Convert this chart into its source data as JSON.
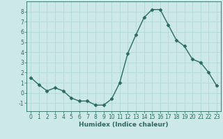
{
  "x": [
    0,
    1,
    2,
    3,
    4,
    5,
    6,
    7,
    8,
    9,
    10,
    11,
    12,
    13,
    14,
    15,
    16,
    17,
    18,
    19,
    20,
    21,
    22,
    23
  ],
  "y": [
    1.5,
    0.8,
    0.2,
    0.5,
    0.2,
    -0.5,
    -0.8,
    -0.8,
    -1.2,
    -1.2,
    -0.6,
    1.0,
    3.9,
    5.7,
    7.4,
    8.2,
    8.2,
    6.7,
    5.2,
    4.6,
    3.3,
    3.0,
    2.0,
    0.7
  ],
  "line_color": "#2a6b5e",
  "marker": "D",
  "marker_size": 2.5,
  "bg_color": "#cce8e8",
  "grid_color": "#b0d8d8",
  "xlabel": "Humidex (Indice chaleur)",
  "ylim": [
    -1.8,
    9.0
  ],
  "xlim": [
    -0.5,
    23.5
  ],
  "yticks": [
    -1,
    0,
    1,
    2,
    3,
    4,
    5,
    6,
    7,
    8
  ],
  "xticks": [
    0,
    1,
    2,
    3,
    4,
    5,
    6,
    7,
    8,
    9,
    10,
    11,
    12,
    13,
    14,
    15,
    16,
    17,
    18,
    19,
    20,
    21,
    22,
    23
  ],
  "xlabel_fontsize": 6.5,
  "tick_fontsize": 5.5,
  "line_width": 1.0
}
